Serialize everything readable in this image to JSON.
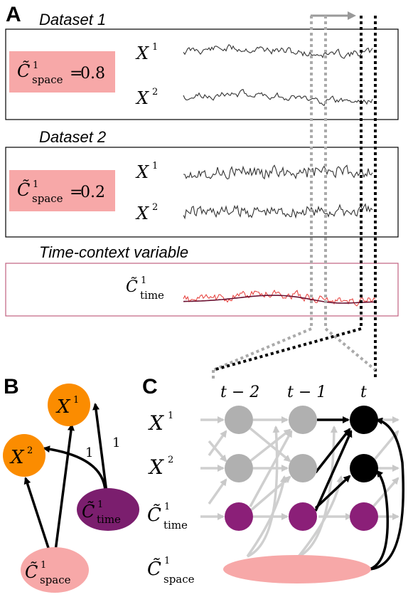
{
  "panels": {
    "a": "A",
    "b": "B",
    "c": "C"
  },
  "datasets": [
    {
      "title": "Dataset 1",
      "coeff_value": "0.8",
      "rows": [
        "X",
        "X"
      ],
      "row_sup": [
        "1",
        "2"
      ]
    },
    {
      "title": "Dataset 2",
      "coeff_value": "0.2",
      "rows": [
        "X",
        "X"
      ],
      "row_sup": [
        "1",
        "2"
      ]
    }
  ],
  "time_context": {
    "title": "Time-context variable"
  },
  "symbols": {
    "c_space": {
      "base": "C̃",
      "sup": "1",
      "sub": "space"
    },
    "c_time": {
      "base": "C̃",
      "sup": "1",
      "sub": "time"
    },
    "x": "X",
    "eq": "="
  },
  "graph_b": {
    "edge_labels": [
      "1",
      "1"
    ]
  },
  "graph_c": {
    "time_labels": [
      "t − 2",
      "t − 1",
      "t"
    ],
    "rows": [
      "X1",
      "X2",
      "Ctime",
      "Cspace"
    ]
  },
  "colors": {
    "coeff_box": "#f7a8a8",
    "orange": "#fb8c00",
    "purple": "#7b1e6e",
    "pink": "#f7a8a8",
    "gray_node": "#b0b0b0",
    "black": "#000000",
    "time_box_border": "#c06080",
    "red_series": "#e53935",
    "dark_trend": "#6a1030"
  }
}
